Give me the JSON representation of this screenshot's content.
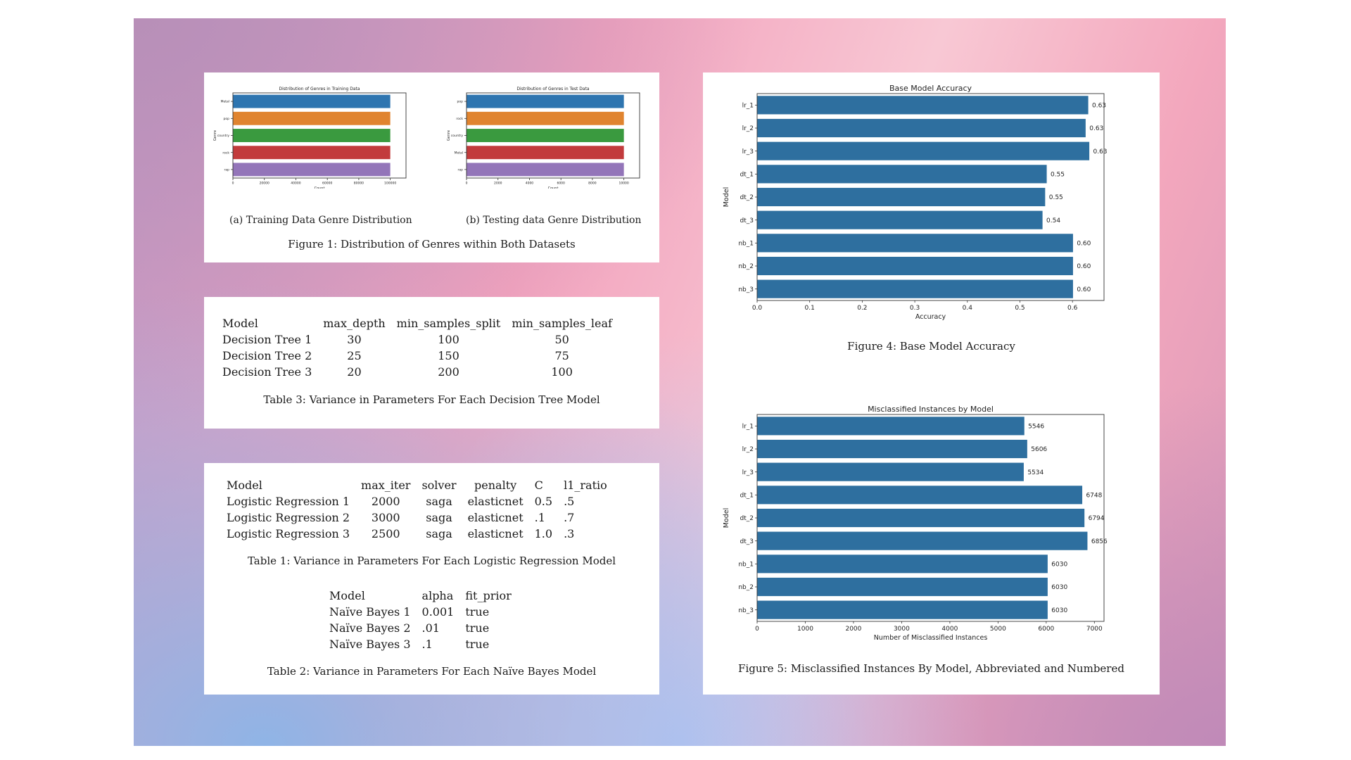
{
  "figure1": {
    "subcaption_a": "(a) Training Data Genre Distribution",
    "subcaption_b": "(b) Testing data Genre Distribution",
    "caption": "Figure 1: Distribution of Genres within Both Datasets"
  },
  "table3": {
    "headers": [
      "Model",
      "max_depth",
      "min_samples_split",
      "min_samples_leaf"
    ],
    "rows": [
      [
        "Decision Tree 1",
        "30",
        "100",
        "50"
      ],
      [
        "Decision Tree 2",
        "25",
        "150",
        "75"
      ],
      [
        "Decision Tree 3",
        "20",
        "200",
        "100"
      ]
    ],
    "caption": "Table 3: Variance in Parameters For Each Decision Tree Model"
  },
  "table1": {
    "headers": [
      "Model",
      "max_iter",
      "solver",
      "penalty",
      "C",
      "l1_ratio"
    ],
    "rows": [
      [
        "Logistic Regression 1",
        "2000",
        "saga",
        "elasticnet",
        "0.5",
        ".5"
      ],
      [
        "Logistic Regression 2",
        "3000",
        "saga",
        "elasticnet",
        ".1",
        ".7"
      ],
      [
        "Logistic Regression 3",
        "2500",
        "saga",
        "elasticnet",
        "1.0",
        ".3"
      ]
    ],
    "caption": "Table 1: Variance in Parameters For Each Logistic Regression Model"
  },
  "table2": {
    "headers": [
      "Model",
      "alpha",
      "fit_prior"
    ],
    "rows": [
      [
        "Naïve Bayes 1",
        "0.001",
        "true"
      ],
      [
        "Naïve Bayes 2",
        ".01",
        "true"
      ],
      [
        "Naïve Bayes 3",
        ".1",
        "true"
      ]
    ],
    "caption": "Table 2: Variance in Parameters For Each Naïve Bayes Model"
  },
  "figure4": {
    "caption": "Figure 4: Base Model Accuracy"
  },
  "figure5": {
    "caption": "Figure 5: Misclassified Instances By Model, Abbreviated and Numbered"
  },
  "chart_data": [
    {
      "type": "bar",
      "orientation": "horizontal",
      "title": "Distribution of Genres in Training Data",
      "xlabel": "Count",
      "ylabel": "Genre",
      "categories": [
        "Metal",
        "pop",
        "country",
        "rock",
        "rap"
      ],
      "values": [
        100000,
        100000,
        100000,
        100000,
        100000
      ],
      "xticks": [
        "0",
        "20000",
        "40000",
        "60000",
        "80000",
        "100000"
      ],
      "xlim": [
        0,
        110000
      ],
      "colors": [
        "#2e75b0",
        "#e0842f",
        "#3a9a3f",
        "#c23b3c",
        "#9375b9"
      ]
    },
    {
      "type": "bar",
      "orientation": "horizontal",
      "title": "Distribution of Genres in Test Data",
      "xlabel": "Count",
      "ylabel": "Genre",
      "categories": [
        "pop",
        "rock",
        "country",
        "Metal",
        "rap"
      ],
      "values": [
        10000,
        10000,
        10000,
        10000,
        10000
      ],
      "xticks": [
        "0",
        "2000",
        "4000",
        "6000",
        "8000",
        "10000"
      ],
      "xlim": [
        0,
        11000
      ],
      "colors": [
        "#2e75b0",
        "#e0842f",
        "#3a9a3f",
        "#c23b3c",
        "#9375b9"
      ]
    },
    {
      "type": "bar",
      "orientation": "horizontal",
      "title": "Base Model Accuracy",
      "xlabel": "Accuracy",
      "ylabel": "Model",
      "categories": [
        "lr_1",
        "lr_2",
        "lr_3",
        "dt_1",
        "dt_2",
        "dt_3",
        "nb_1",
        "nb_2",
        "nb_3"
      ],
      "values": [
        0.63,
        0.625,
        0.632,
        0.551,
        0.548,
        0.543,
        0.601,
        0.601,
        0.601
      ],
      "data_labels": [
        "0.63",
        "0.63",
        "0.63",
        "0.55",
        "0.55",
        "0.54",
        "0.60",
        "0.60",
        "0.60"
      ],
      "xticks": [
        "0.0",
        "0.1",
        "0.2",
        "0.3",
        "0.4",
        "0.5",
        "0.6"
      ],
      "xlim": [
        0,
        0.66
      ],
      "color": "#2e6f9f"
    },
    {
      "type": "bar",
      "orientation": "horizontal",
      "title": "Misclassified Instances by Model",
      "xlabel": "Number of Misclassified Instances",
      "ylabel": "Model",
      "categories": [
        "lr_1",
        "lr_2",
        "lr_3",
        "dt_1",
        "dt_2",
        "dt_3",
        "nb_1",
        "nb_2",
        "nb_3"
      ],
      "values": [
        5546,
        5606,
        5534,
        6748,
        6794,
        6856,
        6030,
        6030,
        6030
      ],
      "data_labels": [
        "5546",
        "5606",
        "5534",
        "6748",
        "6794",
        "6856",
        "6030",
        "6030",
        "6030"
      ],
      "xticks": [
        "0",
        "1000",
        "2000",
        "3000",
        "4000",
        "5000",
        "6000",
        "7000"
      ],
      "xlim": [
        0,
        7200
      ],
      "color": "#2e6f9f"
    }
  ]
}
